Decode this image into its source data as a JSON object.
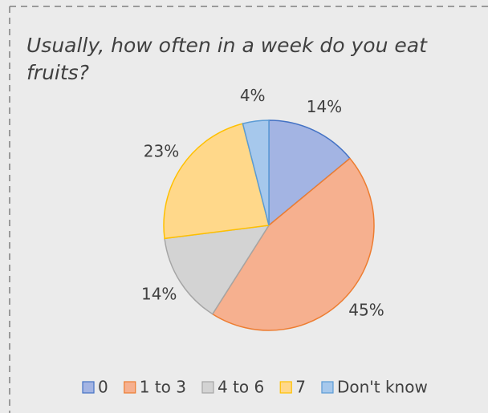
{
  "chart_data": {
    "type": "pie",
    "title": "Usually, how often in a week do you eat fruits?",
    "categories": [
      "0",
      "1 to 3",
      "4 to 6",
      "7",
      "Don't know"
    ],
    "values": [
      14,
      45,
      14,
      23,
      4
    ],
    "value_labels": [
      "14%",
      "45%",
      "14%",
      "23%",
      "4%"
    ],
    "colors": [
      "#a3b4e3",
      "#f6b08f",
      "#d3d3d3",
      "#ffd88a",
      "#a6c8ec"
    ],
    "stroke_colors": [
      "#4472c4",
      "#ed7d31",
      "#a5a5a5",
      "#ffc000",
      "#5b9bd5"
    ],
    "legend": "bottom"
  }
}
